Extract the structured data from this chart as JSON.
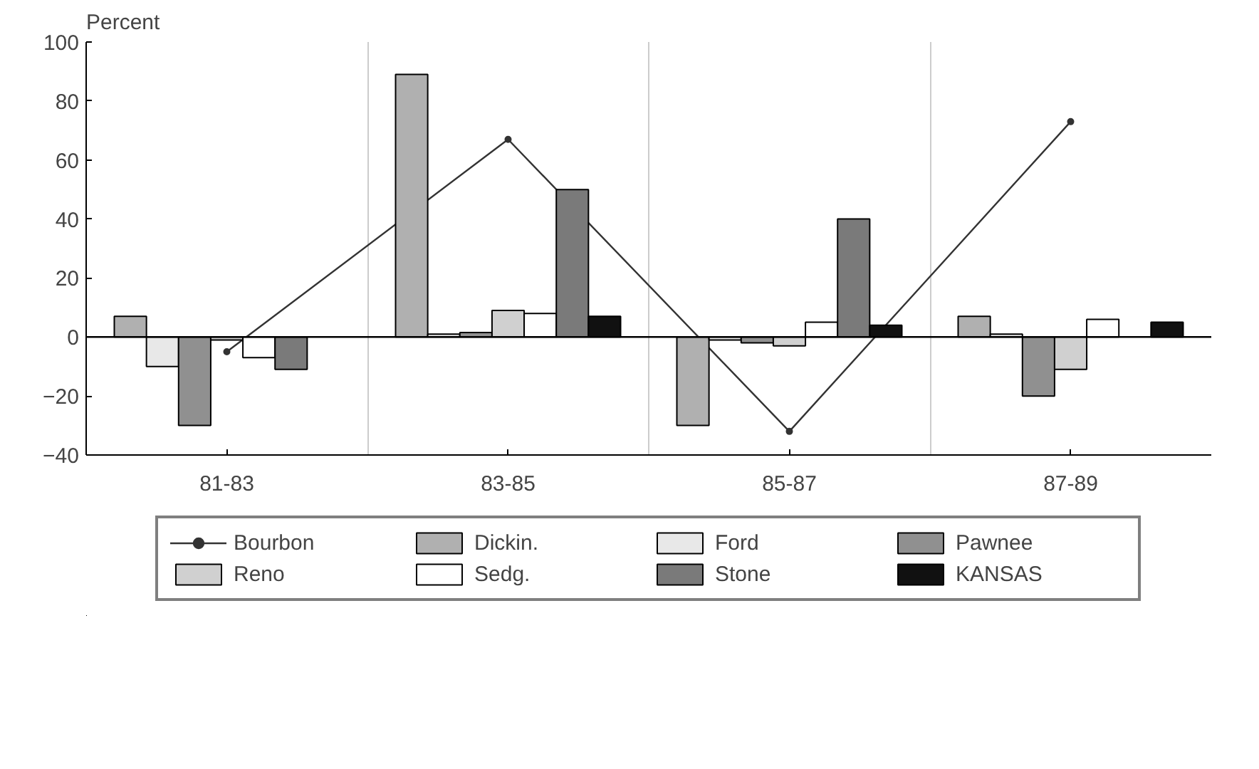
{
  "chart_data": {
    "type": "bar",
    "ylabel": "Percent",
    "categories": [
      "81-83",
      "83-85",
      "85-87",
      "87-89"
    ],
    "ylim": [
      -40,
      100
    ],
    "yticks": [
      -40,
      -20,
      0,
      20,
      40,
      60,
      80,
      100
    ],
    "grid": "x",
    "legend": "bottom",
    "marker": "circle",
    "ref_lines": [
      {
        "axis": "y",
        "value": 0,
        "color": "#000000"
      }
    ],
    "series": [
      {
        "name": "Bourbon",
        "type": "line",
        "color": "#333333",
        "values": [
          -5,
          67,
          -32,
          73
        ]
      },
      {
        "name": "Dickin.",
        "color": "#b0b0b0",
        "values": [
          7,
          89,
          -30,
          7
        ]
      },
      {
        "name": "Ford",
        "color": "#e8e8e8",
        "values": [
          -10,
          1,
          -1,
          1
        ]
      },
      {
        "name": "Pawnee",
        "color": "#909090",
        "values": [
          -30,
          1.5,
          -2,
          -20
        ]
      },
      {
        "name": "Reno",
        "color": "#d0d0d0",
        "values": [
          -1,
          9,
          -3,
          -11
        ]
      },
      {
        "name": "Sedg.",
        "color": "#ffffff",
        "values": [
          -7,
          8,
          5,
          6
        ]
      },
      {
        "name": "Stone",
        "color": "#7a7a7a",
        "values": [
          -11,
          50,
          40,
          null
        ]
      },
      {
        "name": "KANSAS",
        "color": "#111111",
        "values": [
          null,
          7,
          4,
          5
        ]
      }
    ]
  }
}
